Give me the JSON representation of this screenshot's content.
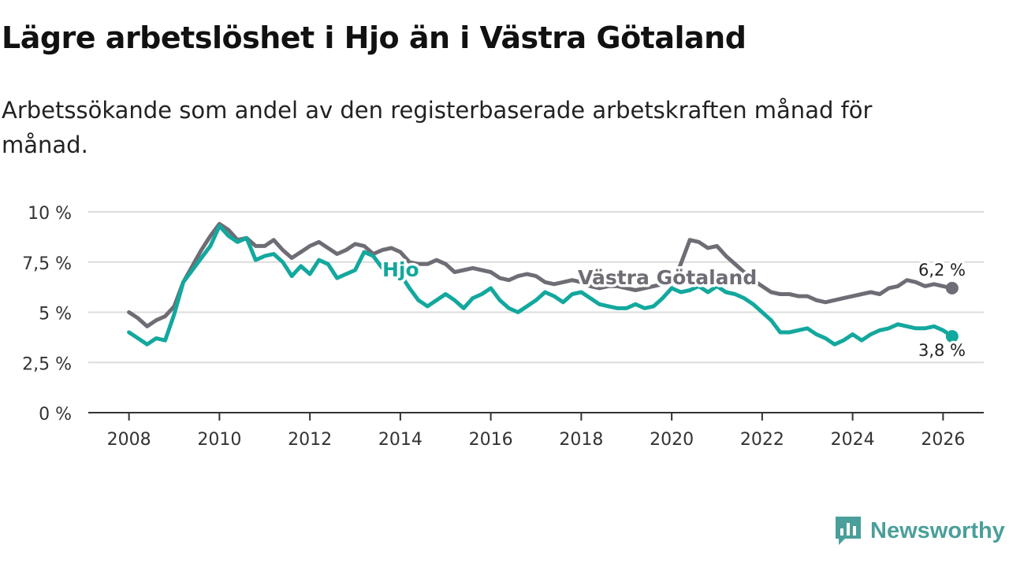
{
  "title": "Lägre arbetslöshet i Hjo än i Västra Götaland",
  "subtitle": "Arbetssökande som andel av den registerbaserade arbetskraften månad för månad.",
  "brand": {
    "name": "Newsworthy",
    "icon": "newsworthy-logo-icon",
    "color": "#4a9f9b"
  },
  "chart_data": {
    "type": "line",
    "title": "Lägre arbetslöshet i Hjo än i Västra Götaland",
    "xlabel": "",
    "ylabel": "",
    "xlim": [
      2007.1,
      2026.9
    ],
    "ylim": [
      0,
      10
    ],
    "grid": true,
    "legend": "inline labels",
    "y_ticks": [
      0,
      2.5,
      5,
      7.5,
      10
    ],
    "y_tick_labels": [
      "0 %",
      "2,5 %",
      "5 %",
      "7,5 %",
      "10 %"
    ],
    "x_ticks": [
      2008,
      2010,
      2012,
      2014,
      2016,
      2018,
      2020,
      2022,
      2024,
      2026
    ],
    "x_tick_labels": [
      "2008",
      "2010",
      "2012",
      "2014",
      "2016",
      "2018",
      "2020",
      "2022",
      "2024",
      "2026"
    ],
    "series": [
      {
        "name": "Västra Götaland",
        "label": "Västra Götaland",
        "color": "#6e6d75",
        "end_label": "6,2 %",
        "points": [
          [
            2008.0,
            5.0
          ],
          [
            2008.2,
            4.7
          ],
          [
            2008.4,
            4.3
          ],
          [
            2008.6,
            4.6
          ],
          [
            2008.8,
            4.8
          ],
          [
            2009.0,
            5.3
          ],
          [
            2009.2,
            6.5
          ],
          [
            2009.4,
            7.3
          ],
          [
            2009.6,
            8.1
          ],
          [
            2009.8,
            8.8
          ],
          [
            2010.0,
            9.4
          ],
          [
            2010.2,
            9.1
          ],
          [
            2010.4,
            8.6
          ],
          [
            2010.6,
            8.7
          ],
          [
            2010.8,
            8.3
          ],
          [
            2011.0,
            8.3
          ],
          [
            2011.2,
            8.6
          ],
          [
            2011.4,
            8.1
          ],
          [
            2011.6,
            7.7
          ],
          [
            2011.8,
            8.0
          ],
          [
            2012.0,
            8.3
          ],
          [
            2012.2,
            8.5
          ],
          [
            2012.4,
            8.2
          ],
          [
            2012.6,
            7.9
          ],
          [
            2012.8,
            8.1
          ],
          [
            2013.0,
            8.4
          ],
          [
            2013.2,
            8.3
          ],
          [
            2013.4,
            7.9
          ],
          [
            2013.6,
            8.1
          ],
          [
            2013.8,
            8.2
          ],
          [
            2014.0,
            8.0
          ],
          [
            2014.2,
            7.5
          ],
          [
            2014.4,
            7.4
          ],
          [
            2014.6,
            7.4
          ],
          [
            2014.8,
            7.6
          ],
          [
            2015.0,
            7.4
          ],
          [
            2015.2,
            7.0
          ],
          [
            2015.4,
            7.1
          ],
          [
            2015.6,
            7.2
          ],
          [
            2015.8,
            7.1
          ],
          [
            2016.0,
            7.0
          ],
          [
            2016.2,
            6.7
          ],
          [
            2016.4,
            6.6
          ],
          [
            2016.6,
            6.8
          ],
          [
            2016.8,
            6.9
          ],
          [
            2017.0,
            6.8
          ],
          [
            2017.2,
            6.5
          ],
          [
            2017.4,
            6.4
          ],
          [
            2017.6,
            6.5
          ],
          [
            2017.8,
            6.6
          ],
          [
            2018.0,
            6.5
          ],
          [
            2018.2,
            6.3
          ],
          [
            2018.4,
            6.2
          ],
          [
            2018.6,
            6.3
          ],
          [
            2018.8,
            6.3
          ],
          [
            2019.0,
            6.2
          ],
          [
            2019.2,
            6.1
          ],
          [
            2019.4,
            6.2
          ],
          [
            2019.6,
            6.3
          ],
          [
            2019.8,
            6.4
          ],
          [
            2020.0,
            6.4
          ],
          [
            2020.2,
            7.4
          ],
          [
            2020.4,
            8.6
          ],
          [
            2020.6,
            8.5
          ],
          [
            2020.8,
            8.2
          ],
          [
            2021.0,
            8.3
          ],
          [
            2021.2,
            7.8
          ],
          [
            2021.4,
            7.4
          ],
          [
            2021.6,
            7.0
          ],
          [
            2021.8,
            6.6
          ],
          [
            2022.0,
            6.3
          ],
          [
            2022.2,
            6.0
          ],
          [
            2022.4,
            5.9
          ],
          [
            2022.6,
            5.9
          ],
          [
            2022.8,
            5.8
          ],
          [
            2023.0,
            5.8
          ],
          [
            2023.2,
            5.6
          ],
          [
            2023.4,
            5.5
          ],
          [
            2023.6,
            5.6
          ],
          [
            2023.8,
            5.7
          ],
          [
            2024.0,
            5.8
          ],
          [
            2024.2,
            5.9
          ],
          [
            2024.4,
            6.0
          ],
          [
            2024.6,
            5.9
          ],
          [
            2024.8,
            6.2
          ],
          [
            2025.0,
            6.3
          ],
          [
            2025.2,
            6.6
          ],
          [
            2025.4,
            6.5
          ],
          [
            2025.6,
            6.3
          ],
          [
            2025.8,
            6.4
          ],
          [
            2026.0,
            6.3
          ],
          [
            2026.2,
            6.2
          ]
        ]
      },
      {
        "name": "Hjo",
        "label": "Hjo",
        "color": "#13a89e",
        "end_label": "3,8 %",
        "points": [
          [
            2008.0,
            4.0
          ],
          [
            2008.2,
            3.7
          ],
          [
            2008.4,
            3.4
          ],
          [
            2008.6,
            3.7
          ],
          [
            2008.8,
            3.6
          ],
          [
            2009.0,
            4.9
          ],
          [
            2009.2,
            6.5
          ],
          [
            2009.4,
            7.1
          ],
          [
            2009.6,
            7.7
          ],
          [
            2009.8,
            8.3
          ],
          [
            2010.0,
            9.3
          ],
          [
            2010.2,
            8.8
          ],
          [
            2010.4,
            8.5
          ],
          [
            2010.6,
            8.7
          ],
          [
            2010.8,
            7.6
          ],
          [
            2011.0,
            7.8
          ],
          [
            2011.2,
            7.9
          ],
          [
            2011.4,
            7.5
          ],
          [
            2011.6,
            6.8
          ],
          [
            2011.8,
            7.3
          ],
          [
            2012.0,
            6.9
          ],
          [
            2012.2,
            7.6
          ],
          [
            2012.4,
            7.4
          ],
          [
            2012.6,
            6.7
          ],
          [
            2012.8,
            6.9
          ],
          [
            2013.0,
            7.1
          ],
          [
            2013.2,
            8.0
          ],
          [
            2013.4,
            7.8
          ],
          [
            2013.6,
            7.2
          ],
          [
            2013.8,
            7.0
          ],
          [
            2014.0,
            6.9
          ],
          [
            2014.2,
            6.2
          ],
          [
            2014.4,
            5.6
          ],
          [
            2014.6,
            5.3
          ],
          [
            2014.8,
            5.6
          ],
          [
            2015.0,
            5.9
          ],
          [
            2015.2,
            5.6
          ],
          [
            2015.4,
            5.2
          ],
          [
            2015.6,
            5.7
          ],
          [
            2015.8,
            5.9
          ],
          [
            2016.0,
            6.2
          ],
          [
            2016.2,
            5.6
          ],
          [
            2016.4,
            5.2
          ],
          [
            2016.6,
            5.0
          ],
          [
            2016.8,
            5.3
          ],
          [
            2017.0,
            5.6
          ],
          [
            2017.2,
            6.0
          ],
          [
            2017.4,
            5.8
          ],
          [
            2017.6,
            5.5
          ],
          [
            2017.8,
            5.9
          ],
          [
            2018.0,
            6.0
          ],
          [
            2018.2,
            5.7
          ],
          [
            2018.4,
            5.4
          ],
          [
            2018.6,
            5.3
          ],
          [
            2018.8,
            5.2
          ],
          [
            2019.0,
            5.2
          ],
          [
            2019.2,
            5.4
          ],
          [
            2019.4,
            5.2
          ],
          [
            2019.6,
            5.3
          ],
          [
            2019.8,
            5.7
          ],
          [
            2020.0,
            6.2
          ],
          [
            2020.2,
            6.0
          ],
          [
            2020.4,
            6.1
          ],
          [
            2020.6,
            6.3
          ],
          [
            2020.8,
            6.0
          ],
          [
            2021.0,
            6.3
          ],
          [
            2021.2,
            6.0
          ],
          [
            2021.4,
            5.9
          ],
          [
            2021.6,
            5.7
          ],
          [
            2021.8,
            5.4
          ],
          [
            2022.0,
            5.0
          ],
          [
            2022.2,
            4.6
          ],
          [
            2022.4,
            4.0
          ],
          [
            2022.6,
            4.0
          ],
          [
            2022.8,
            4.1
          ],
          [
            2023.0,
            4.2
          ],
          [
            2023.2,
            3.9
          ],
          [
            2023.4,
            3.7
          ],
          [
            2023.6,
            3.4
          ],
          [
            2023.8,
            3.6
          ],
          [
            2024.0,
            3.9
          ],
          [
            2024.2,
            3.6
          ],
          [
            2024.4,
            3.9
          ],
          [
            2024.6,
            4.1
          ],
          [
            2024.8,
            4.2
          ],
          [
            2025.0,
            4.4
          ],
          [
            2025.2,
            4.3
          ],
          [
            2025.4,
            4.2
          ],
          [
            2025.6,
            4.2
          ],
          [
            2025.8,
            4.3
          ],
          [
            2026.0,
            4.1
          ],
          [
            2026.2,
            3.8
          ]
        ]
      }
    ]
  }
}
